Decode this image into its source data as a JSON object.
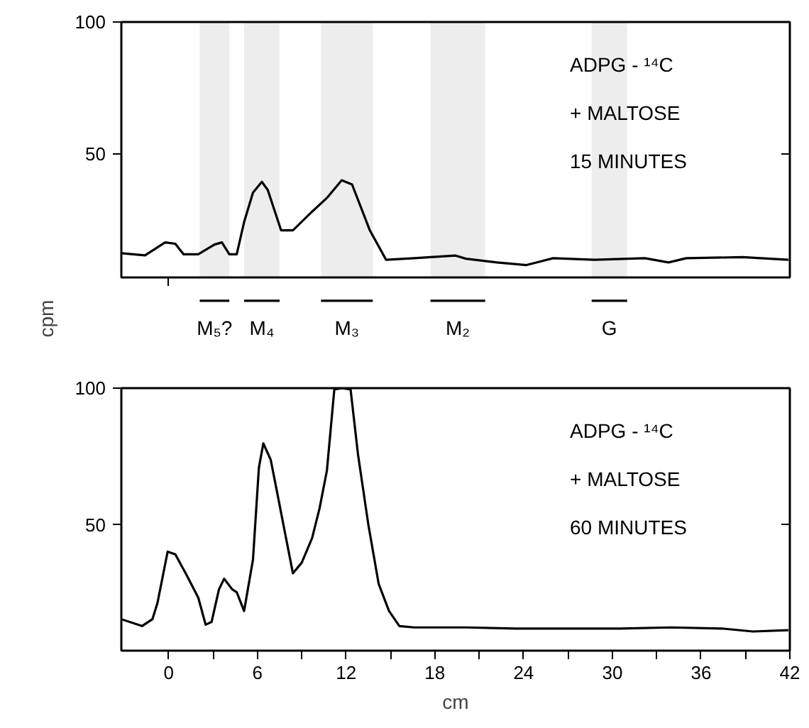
{
  "chart_data": [
    {
      "type": "line",
      "ylabel": "cpm",
      "annotations": [
        "ADPG - ¹⁴C",
        "+ MALTOSE",
        "15 MINUTES"
      ],
      "x": [
        -3.2,
        -1.6,
        -0.24,
        0.45,
        1.0,
        2.0,
        3.1,
        3.6,
        4.1,
        4.6,
        5.1,
        5.7,
        6.3,
        6.7,
        7.6,
        8.4,
        9.7,
        10.7,
        11.7,
        12.4,
        13.6,
        14.7,
        16.6,
        19.4,
        20.1,
        22.2,
        24.2,
        26,
        28.8,
        32.2,
        33.8,
        35,
        38.8,
        41.9
      ],
      "values": [
        12.2,
        11.4,
        16.3,
        15.8,
        11.8,
        11.8,
        15.5,
        16.3,
        11.8,
        11.8,
        24,
        35.2,
        39.3,
        36.2,
        20.9,
        20.9,
        28,
        33.2,
        39.9,
        38.3,
        20.9,
        9.7,
        10.3,
        11.3,
        10.1,
        8.7,
        7.7,
        10.3,
        9.7,
        10.3,
        8.7,
        10.3,
        10.7,
        9.7
      ],
      "color": "#000000",
      "xlim": [
        -3.2,
        42
      ],
      "ylim": [
        3,
        100
      ],
      "yticks": [
        50,
        100
      ],
      "xticks": [
        {
          "value": 0,
          "label": null
        }
      ],
      "tick_labels": "y",
      "grid": false,
      "legend": "bottom",
      "bands": [
        {
          "axis": "x",
          "from": 2.1,
          "to": 4.1,
          "label": "M₅?"
        },
        {
          "axis": "x",
          "from": 5.1,
          "to": 7.5,
          "label": "M₄"
        },
        {
          "axis": "x",
          "from": 10.3,
          "to": 13.8,
          "label": "M₃"
        },
        {
          "axis": "x",
          "from": 17.7,
          "to": 21.4,
          "label": "M₂"
        },
        {
          "axis": "x",
          "from": 28.6,
          "to": 31.0,
          "label": "G"
        }
      ]
    },
    {
      "type": "line",
      "xlabel": "cm",
      "annotations": [
        "ADPG - ¹⁴C",
        "+ MALTOSE",
        "60 MINUTES"
      ],
      "x": [
        -3.2,
        -1.8,
        -1.1,
        -0.76,
        -0.07,
        0.45,
        1.15,
        2.0,
        2.5,
        2.9,
        3.4,
        3.75,
        4.3,
        4.6,
        5.1,
        5.7,
        6.1,
        6.4,
        6.9,
        7.4,
        7.9,
        8.4,
        9.0,
        9.7,
        10.2,
        10.7,
        11.2,
        11.7,
        12.3,
        12.8,
        13.5,
        14.2,
        14.9,
        15.6,
        16.6,
        20.1,
        23.5,
        27,
        30.5,
        34,
        37.4,
        39.5,
        41.9
      ],
      "values": [
        15.5,
        13,
        15.5,
        21.4,
        40.2,
        39.2,
        32.3,
        23.4,
        13.5,
        14.5,
        26.4,
        30.3,
        26.4,
        25.4,
        18.5,
        37.3,
        70.9,
        79.8,
        73.8,
        60,
        46.1,
        32.3,
        36.2,
        45.2,
        56,
        69.9,
        99.5,
        100,
        99.5,
        75.8,
        50.1,
        28.4,
        18.5,
        13,
        12.5,
        12.5,
        12.1,
        12.1,
        12.1,
        12.5,
        12.1,
        11,
        11.5
      ],
      "color": "#000000",
      "xlim": [
        -3.2,
        42
      ],
      "ylim": [
        4,
        100
      ],
      "yticks": [
        50,
        100
      ],
      "xticks": [
        0,
        {
          "value": 3,
          "label": null
        },
        6,
        {
          "value": 9,
          "label": null
        },
        12,
        {
          "value": 15,
          "label": null
        },
        18,
        {
          "value": 21,
          "label": null
        },
        24,
        {
          "value": 27,
          "label": null
        },
        30,
        {
          "value": 33,
          "label": null
        },
        36,
        {
          "value": 39,
          "label": null
        },
        42
      ],
      "grid": false
    }
  ]
}
